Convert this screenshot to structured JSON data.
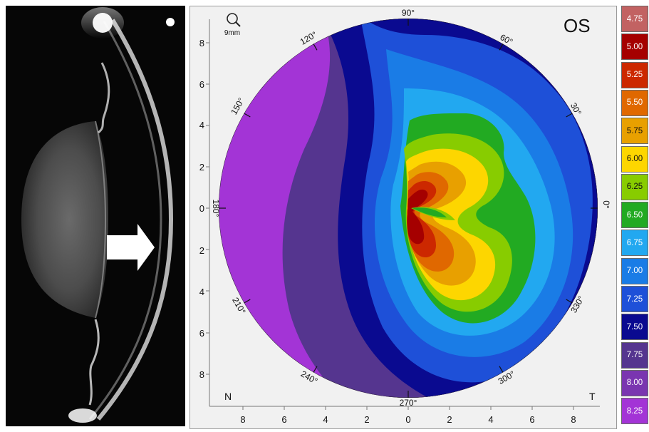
{
  "topography": {
    "eye": "OS",
    "scale_label": "9mm",
    "nasal_label": "N",
    "temporal_label": "T",
    "angle_labels": [
      "90°",
      "60°",
      "30°",
      "0°",
      "330°",
      "300°",
      "270°",
      "240°",
      "210°",
      "180°",
      "150°",
      "120°"
    ],
    "y_ticks": [
      "8",
      "6",
      "4",
      "2",
      "0",
      "2",
      "4",
      "6",
      "8"
    ],
    "x_ticks": [
      "8",
      "6",
      "4",
      "2",
      "0",
      "2",
      "4",
      "6",
      "8"
    ]
  },
  "legend": {
    "entries": [
      {
        "value": "4.75",
        "color": "#c26262"
      },
      {
        "value": "5.00",
        "color": "#a50000"
      },
      {
        "value": "5.25",
        "color": "#cc2800"
      },
      {
        "value": "5.50",
        "color": "#e06800"
      },
      {
        "value": "5.75",
        "color": "#e8a000"
      },
      {
        "value": "6.00",
        "color": "#fdd600"
      },
      {
        "value": "6.25",
        "color": "#88cc00"
      },
      {
        "value": "6.50",
        "color": "#22aa22"
      },
      {
        "value": "6.75",
        "color": "#22a8f0"
      },
      {
        "value": "7.00",
        "color": "#1a7ce6"
      },
      {
        "value": "7.25",
        "color": "#1e50d8"
      },
      {
        "value": "7.50",
        "color": "#0a0a90"
      },
      {
        "value": "7.75",
        "color": "#55358f"
      },
      {
        "value": "8.00",
        "color": "#7a35b0"
      },
      {
        "value": "8.25",
        "color": "#a334d6"
      }
    ]
  }
}
